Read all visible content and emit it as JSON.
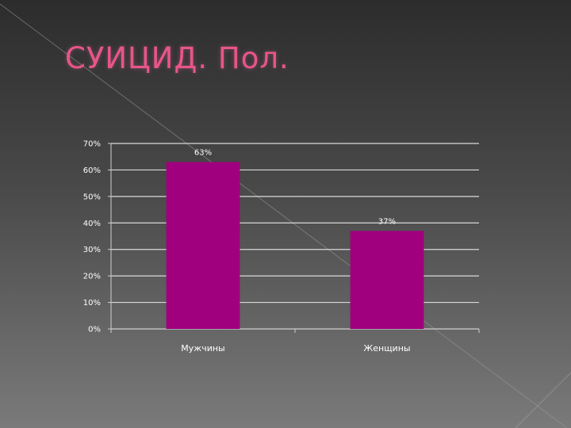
{
  "slide": {
    "title": "СУИЦИД. Пол.",
    "title_color": "#e8558a",
    "bar_color": "#a0007e"
  },
  "chart_data": {
    "type": "bar",
    "categories": [
      "Мужчины",
      "Женщины"
    ],
    "values": [
      63,
      37
    ],
    "data_labels": [
      "63%",
      "37%"
    ],
    "y_ticks": [
      "0%",
      "10%",
      "20%",
      "30%",
      "40%",
      "50%",
      "60%",
      "70%"
    ],
    "ylim": [
      0,
      70
    ],
    "grid": true,
    "legend": "none"
  }
}
